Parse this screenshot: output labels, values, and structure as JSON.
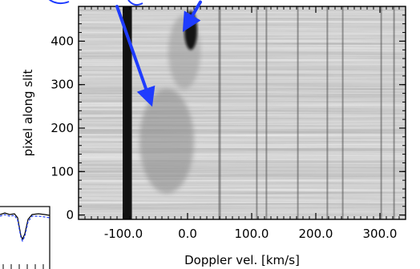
{
  "chart_data": {
    "type": "heatmap",
    "xlabel": "Doppler vel. [km/s]",
    "ylabel": "pixel along slit",
    "xlim": [
      -170,
      340
    ],
    "ylim": [
      -10,
      480
    ],
    "x_ticks": [
      {
        "value": -100,
        "label": "-100.0"
      },
      {
        "value": 0,
        "label": "0.0"
      },
      {
        "value": 100,
        "label": "100.0"
      },
      {
        "value": 200,
        "label": "200.0"
      },
      {
        "value": 300,
        "label": "300.0"
      }
    ],
    "y_ticks": [
      {
        "value": 0,
        "label": "0"
      },
      {
        "value": 100,
        "label": "100"
      },
      {
        "value": 200,
        "label": "200"
      },
      {
        "value": 300,
        "label": "300"
      },
      {
        "value": 400,
        "label": "400"
      }
    ],
    "colormap": "inverted grayscale",
    "absorption_lines_kms": [
      -95,
      -93,
      50,
      108,
      123,
      172,
      218,
      242,
      302,
      322
    ],
    "emission_features": [
      {
        "x_range_kms": [
          -75,
          10
        ],
        "y_range": [
          50,
          290
        ]
      },
      {
        "x_range_kms": [
          -30,
          20
        ],
        "y_range": [
          290,
          460
        ]
      },
      {
        "x_range_kms": [
          -5,
          15
        ],
        "y_range": [
          380,
          470
        ]
      }
    ],
    "arrows": [
      {
        "from": [
          -110,
          480
        ],
        "to": [
          -60,
          270
        ],
        "color": "#1f3cff"
      },
      {
        "from": [
          20,
          490
        ],
        "to": [
          0,
          440
        ],
        "color": "#1f3cff"
      }
    ],
    "colors": {
      "arrow": "#1f3cff",
      "profile_solid": "#000000",
      "profile_dashed": "#1f3cff"
    }
  }
}
